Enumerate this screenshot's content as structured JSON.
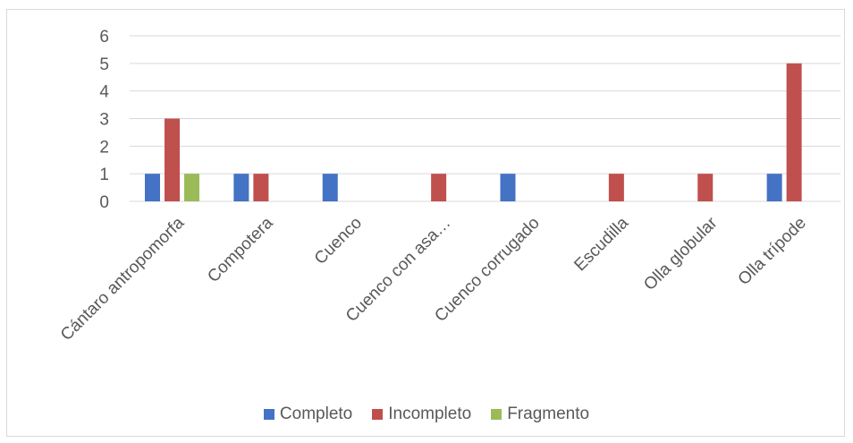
{
  "chart_data": {
    "type": "bar",
    "categories": [
      "Cántaro antropomorfa",
      "Compotera",
      "Cuenco",
      "Cuenco con asa…",
      "Cuenco corrugado",
      "Escudilla",
      "Olla globular",
      "Olla trípode"
    ],
    "series": [
      {
        "name": "Completo",
        "color": "#4472c4",
        "values": [
          1,
          1,
          1,
          0,
          1,
          0,
          0,
          1
        ]
      },
      {
        "name": "Incompleto",
        "color": "#c0504d",
        "values": [
          3,
          1,
          0,
          1,
          0,
          1,
          1,
          5
        ]
      },
      {
        "name": "Fragmento",
        "color": "#9bbb59",
        "values": [
          1,
          0,
          0,
          0,
          0,
          0,
          0,
          0
        ]
      }
    ],
    "yticks": [
      "0",
      "1",
      "2",
      "3",
      "4",
      "5",
      "6"
    ],
    "ylim": [
      0,
      6
    ],
    "grid": true,
    "legend": "bottom"
  }
}
